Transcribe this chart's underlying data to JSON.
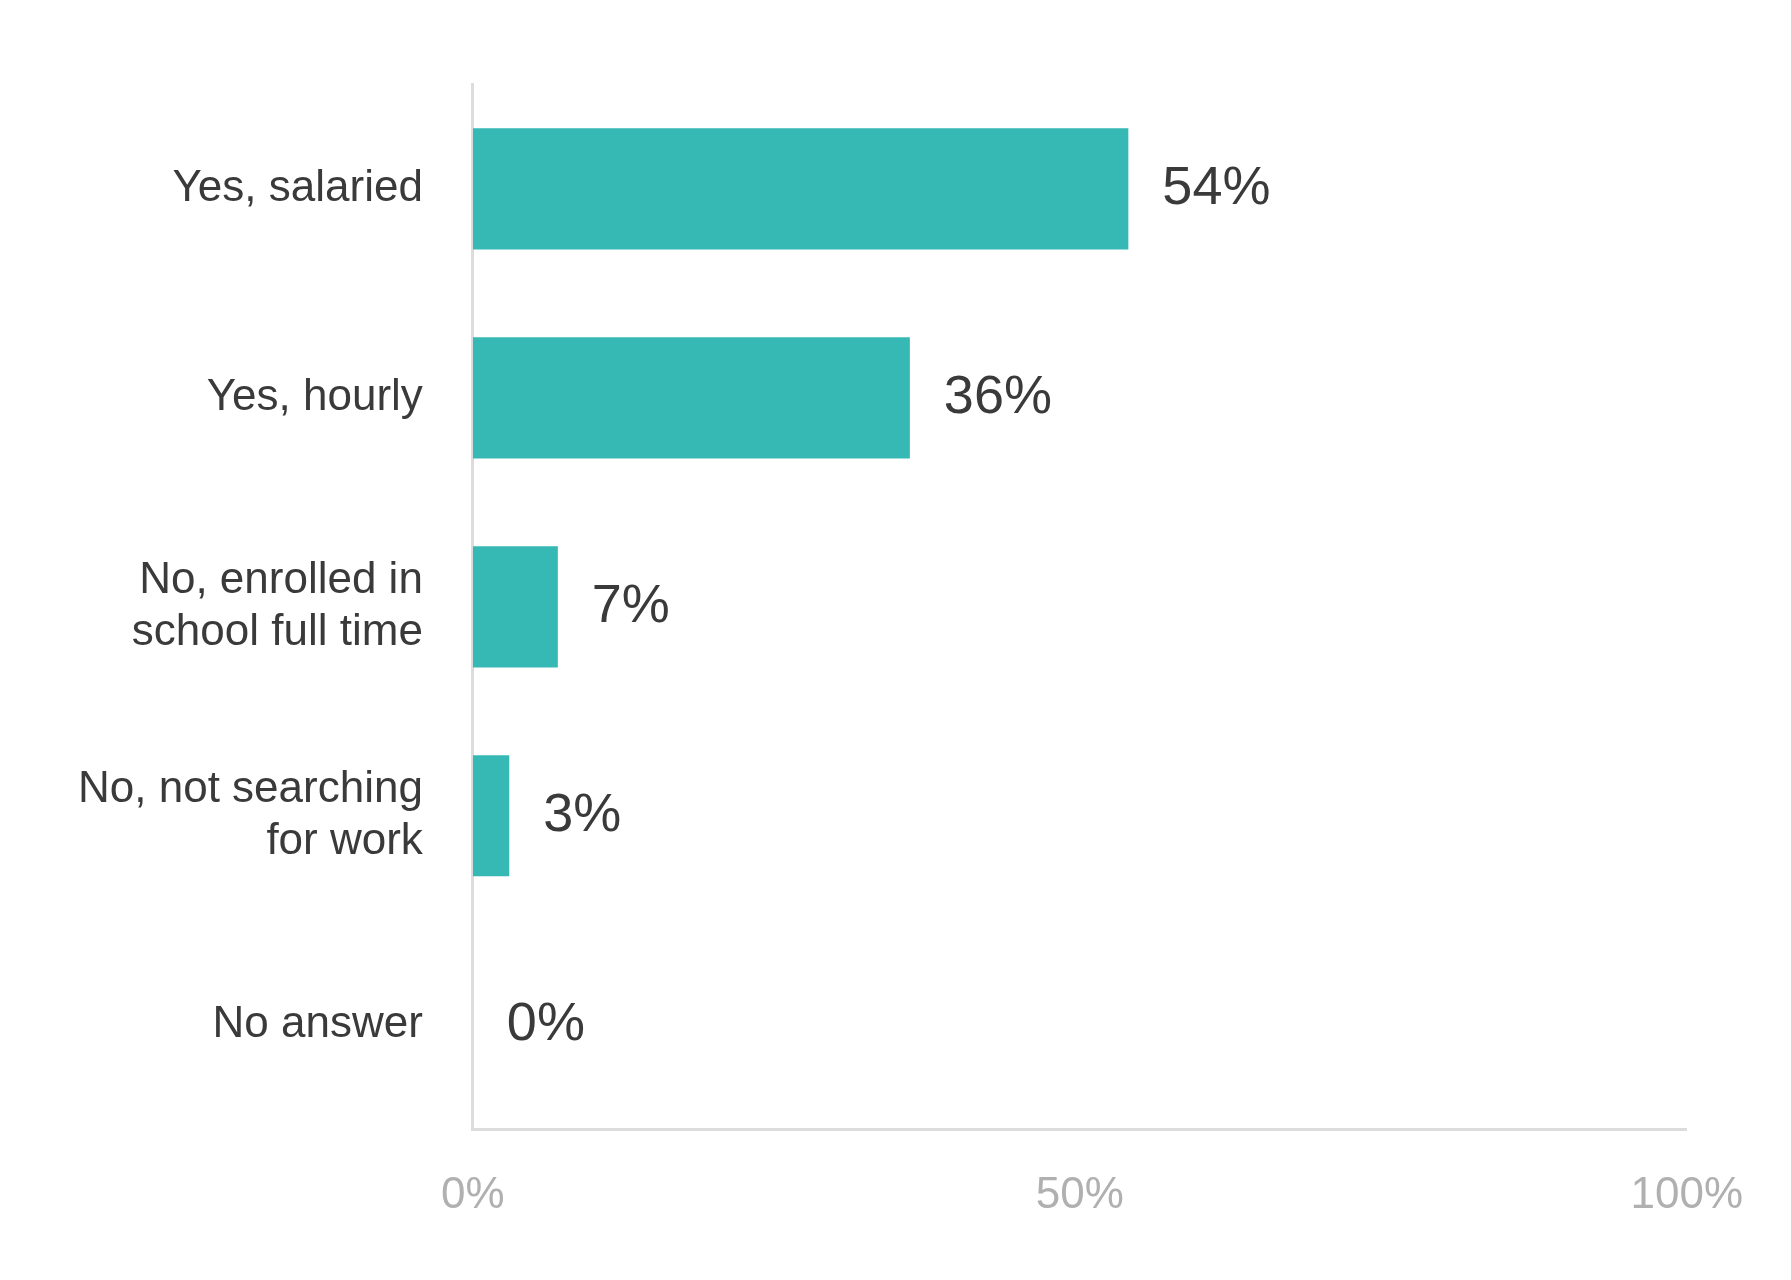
{
  "chart_data": {
    "type": "bar",
    "orientation": "horizontal",
    "categories": [
      "Yes, salaried",
      "Yes, hourly",
      "No, enrolled in school full time",
      "No, not searching for work",
      "No answer"
    ],
    "values": [
      54,
      36,
      7,
      3,
      0
    ],
    "value_labels": [
      "54%",
      "36%",
      "7%",
      "3%",
      "0%"
    ],
    "color": "#36b9b4",
    "xlim": [
      0,
      100
    ],
    "xticks": [
      {
        "value": 0,
        "label": "0%"
      },
      {
        "value": 50,
        "label": "50%"
      },
      {
        "value": 100,
        "label": "100%"
      }
    ],
    "grid": false,
    "legend": false
  }
}
